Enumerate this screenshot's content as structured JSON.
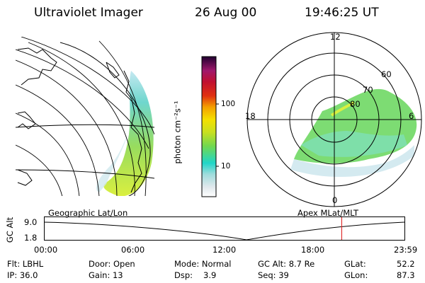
{
  "header": {
    "instrument": "Ultraviolet Imager",
    "date": "26 Aug 00",
    "time": "19:46:25 UT"
  },
  "colorbar": {
    "unit_label": "photon cm⁻²s⁻¹",
    "ticks": [
      "100",
      "10"
    ]
  },
  "left_panel": {
    "caption": "Geographic Lat/Lon"
  },
  "right_panel": {
    "caption": "Apex MLat/MLT",
    "mlt_labels": [
      "12",
      "18",
      "6",
      "0"
    ],
    "lat_labels": [
      "60",
      "70",
      "80"
    ]
  },
  "altitude_plot": {
    "ylabel": "GC Alt",
    "y_ticks": [
      "9.0",
      "1.8"
    ],
    "x_ticks": [
      "00:00",
      "06:00",
      "12:00",
      "18:00",
      "23:59"
    ],
    "current_time_fraction": 0.825
  },
  "status": {
    "flt": "Flt: LBHL",
    "ip": "IP: 36.0",
    "door": "Door: Open",
    "gain": "Gain: 13",
    "mode": "Mode: Normal",
    "dsp_label": "Dsp:",
    "dsp_value": "3.9",
    "gc_alt": "GC Alt: 8.7 Re",
    "seq": "Seq: 39",
    "glat_label": "GLat:",
    "glat_value": "52.2",
    "glon_label": "GLon:",
    "glon_value": "87.3"
  },
  "colors": {
    "marker_line": "#e03030"
  }
}
